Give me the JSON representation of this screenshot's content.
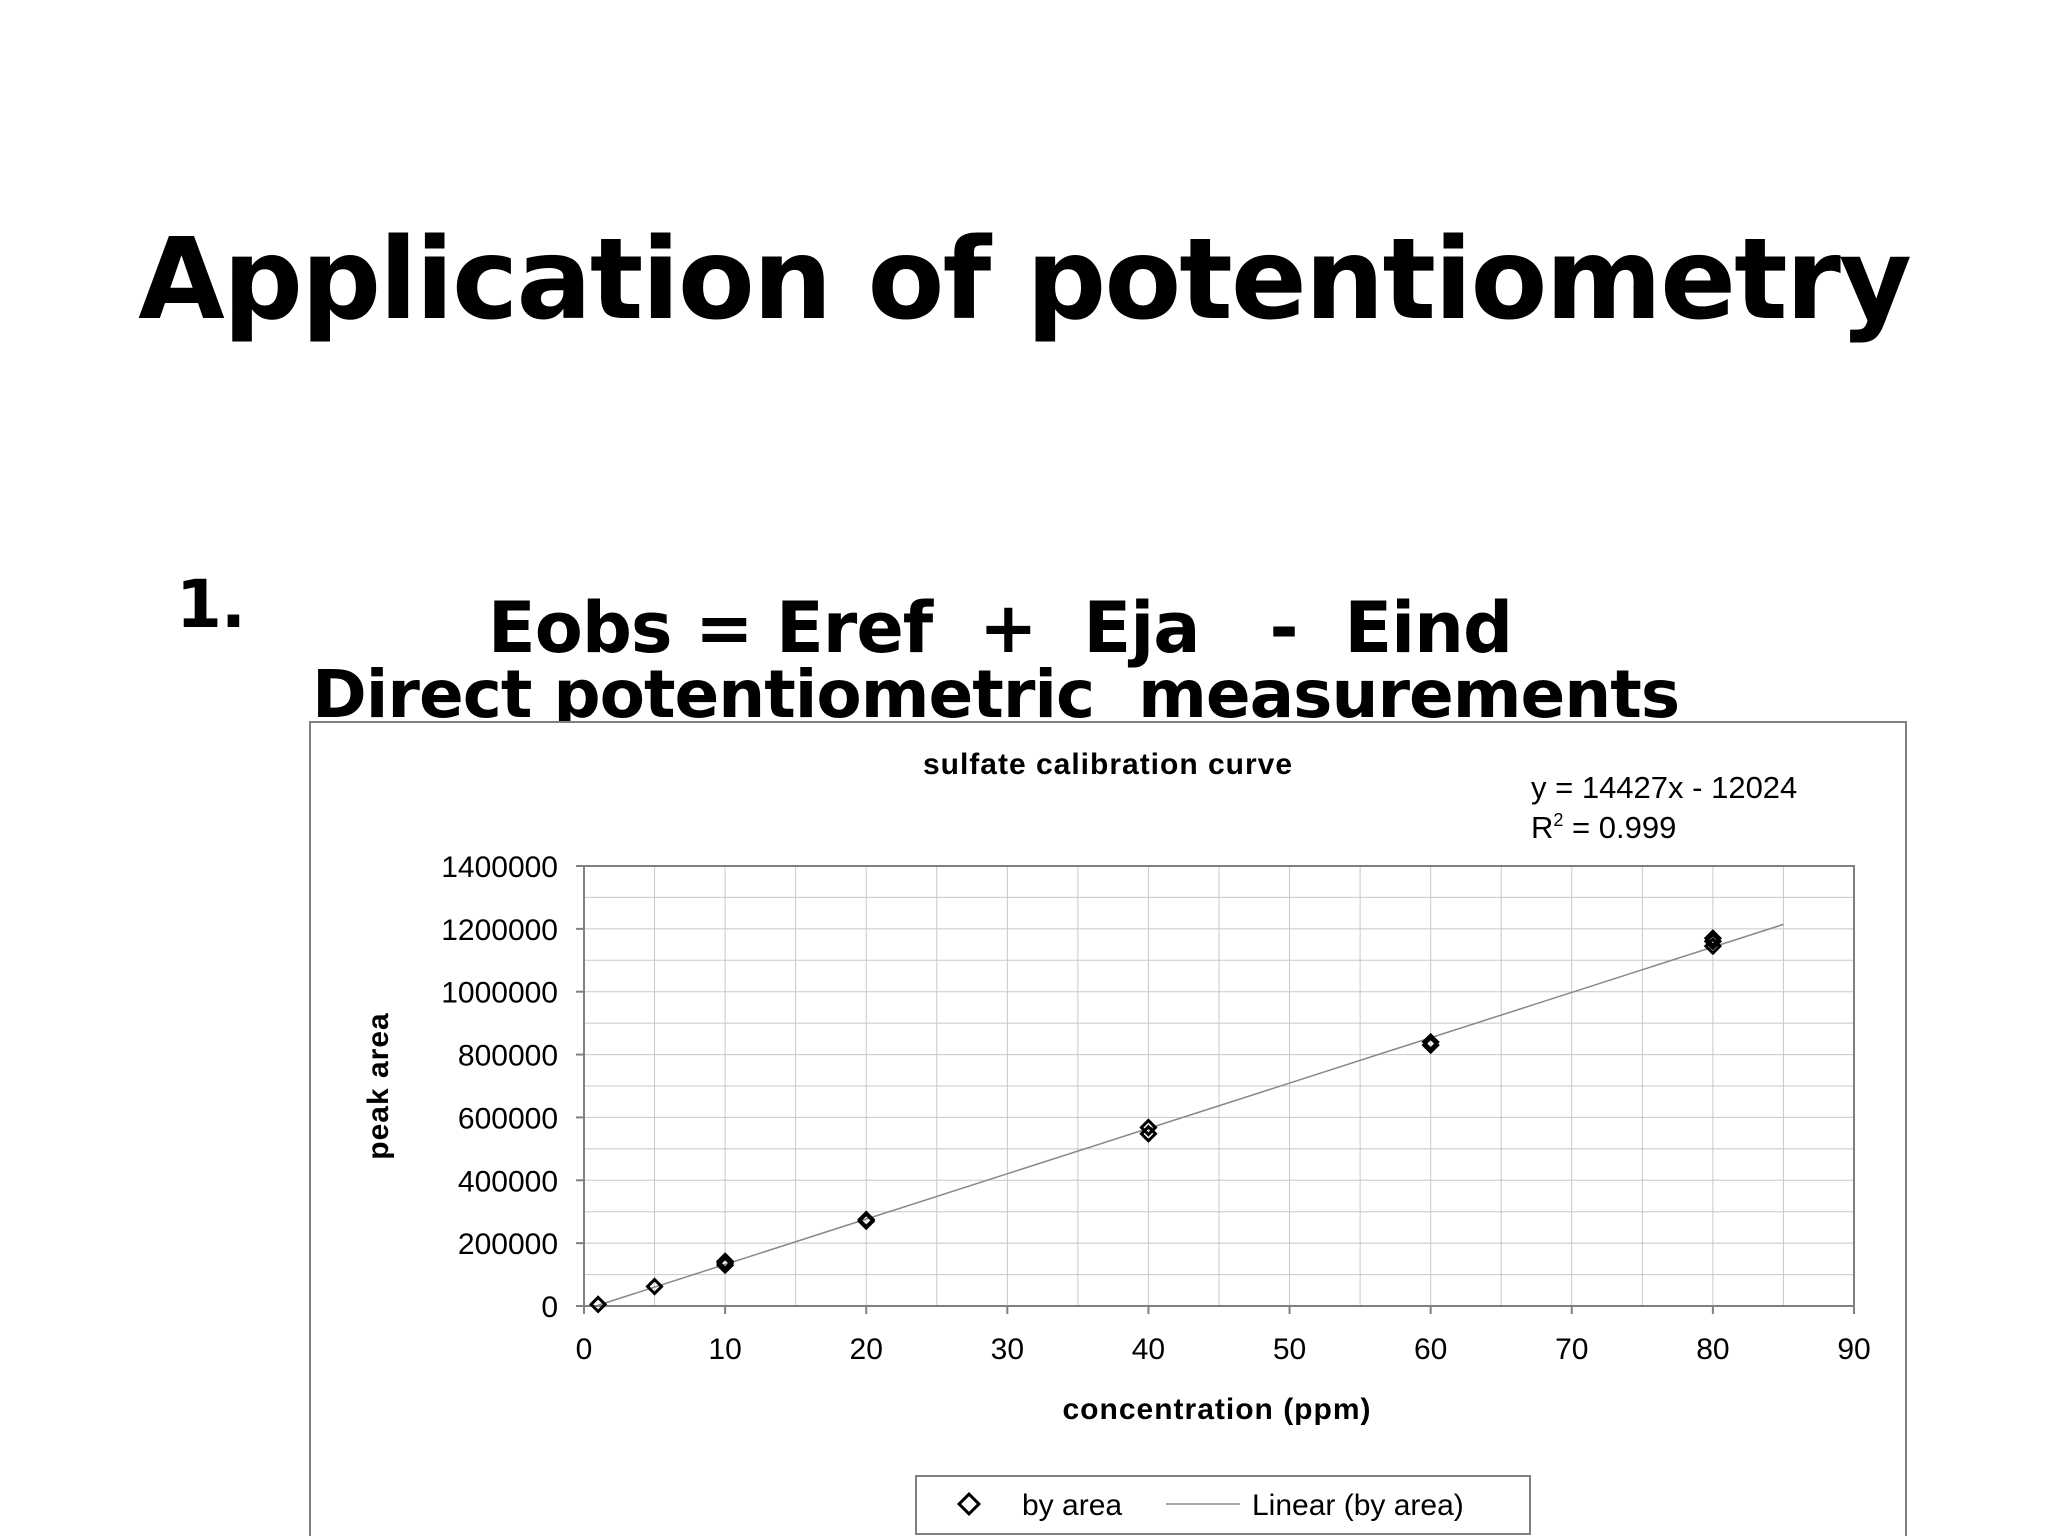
{
  "slide": {
    "title": "Application of potentiometry",
    "bullet_number": "1.",
    "bullet_text": "Direct potentiometric  measurements",
    "equation": "Eobs = Eref  +  Eja   -  Eind"
  },
  "chart_data": {
    "type": "scatter",
    "title": "sulfate calibration curve",
    "xlabel": "concentration (ppm)",
    "ylabel": "peak area",
    "xlim": [
      0,
      90
    ],
    "ylim": [
      0,
      1400000
    ],
    "x_ticks": [
      0,
      10,
      20,
      30,
      40,
      50,
      60,
      70,
      80,
      90
    ],
    "y_ticks": [
      0,
      200000,
      400000,
      600000,
      800000,
      1000000,
      1200000,
      1400000
    ],
    "grid": true,
    "legend_position": "bottom",
    "series": [
      {
        "name": "by area",
        "marker": "diamond-open",
        "points": [
          [
            1,
            5000
          ],
          [
            5,
            62000
          ],
          [
            10,
            130000
          ],
          [
            10,
            137000
          ],
          [
            10,
            142000
          ],
          [
            20,
            270000
          ],
          [
            20,
            275000
          ],
          [
            40,
            548000
          ],
          [
            40,
            568000
          ],
          [
            60,
            830000
          ],
          [
            60,
            840000
          ],
          [
            80,
            1145000
          ],
          [
            80,
            1160000
          ],
          [
            80,
            1170000
          ]
        ]
      },
      {
        "name": "Linear (by area)",
        "type": "line",
        "slope": 14427,
        "intercept": -12024,
        "x_range": [
          1,
          85
        ]
      }
    ],
    "annotations": {
      "equation": "y = 14427x - 12024",
      "r_squared_prefix": "R",
      "r_squared_exponent": "2",
      "r_squared_value": " = 0.999"
    },
    "colors": {
      "marker": "#000000",
      "trendline": "#888888",
      "grid": "#c8c8c8",
      "axis": "#808080",
      "frame": "#808080"
    }
  }
}
